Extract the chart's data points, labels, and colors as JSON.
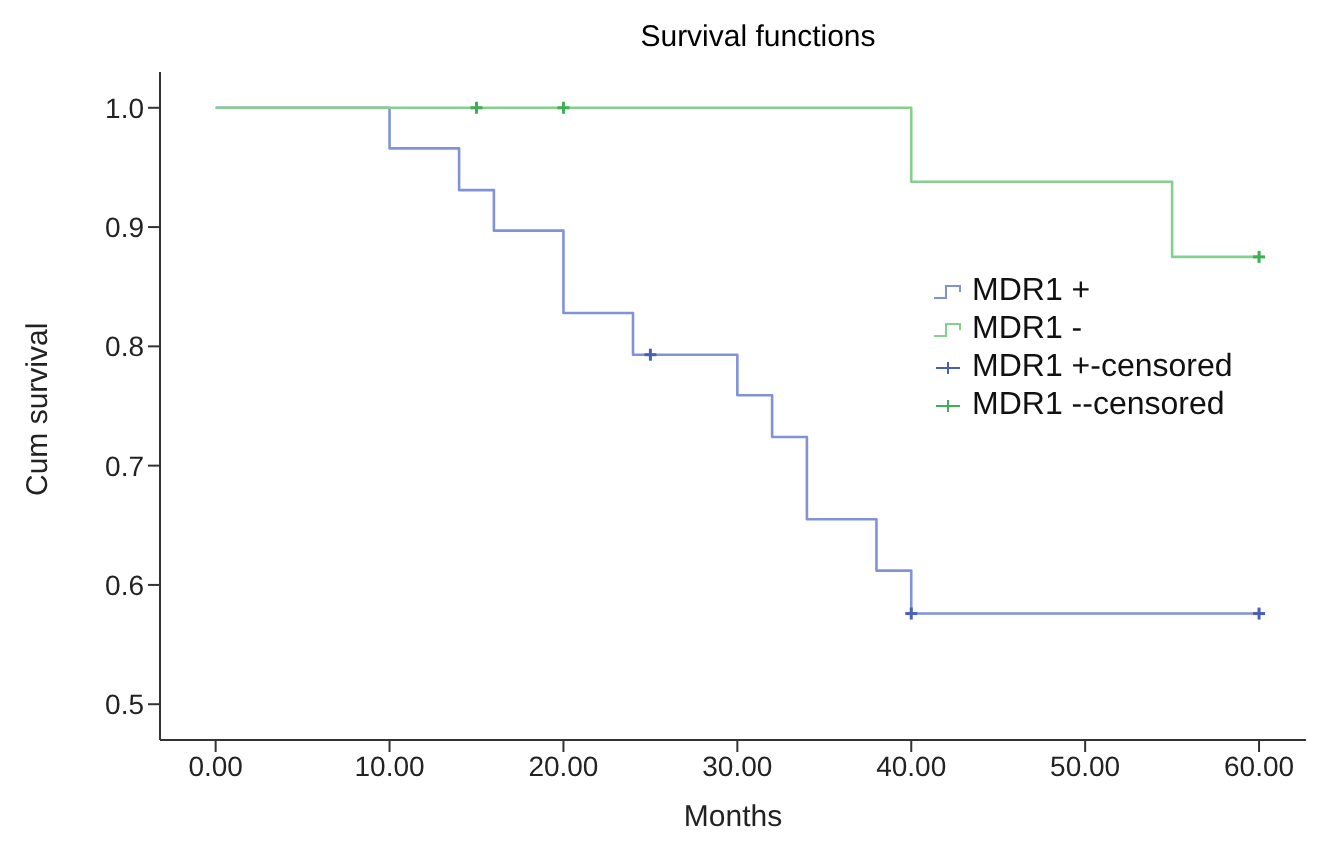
{
  "chart_data": {
    "type": "step",
    "title": "Survival functions",
    "xlabel": "Months",
    "ylabel": "Cum survival",
    "xlim": [
      -3.2,
      62.7
    ],
    "ylim": [
      0.47,
      1.03
    ],
    "xticks": [
      {
        "value": 0,
        "label": "0.00"
      },
      {
        "value": 10,
        "label": "10.00"
      },
      {
        "value": 20,
        "label": "20.00"
      },
      {
        "value": 30,
        "label": "30.00"
      },
      {
        "value": 40,
        "label": "40.00"
      },
      {
        "value": 50,
        "label": "50.00"
      },
      {
        "value": 60,
        "label": "60.00"
      }
    ],
    "yticks": [
      0.5,
      0.6,
      0.7,
      0.8,
      0.9,
      {
        "value": 1.0,
        "label": "1.0"
      }
    ],
    "grid": false,
    "legend": "right",
    "series": [
      {
        "name": "MDR1 +",
        "color": "#8193d6",
        "x": [
          0,
          10,
          14,
          16,
          20,
          24,
          30,
          32,
          34,
          38,
          40,
          60
        ],
        "values": [
          1.0,
          0.966,
          0.931,
          0.897,
          0.828,
          0.793,
          0.759,
          0.724,
          0.655,
          0.612,
          0.576,
          0.576
        ]
      },
      {
        "name": "MDR1 -",
        "color": "#86cf8e",
        "x": [
          0,
          40,
          55,
          60
        ],
        "values": [
          1.0,
          0.938,
          0.875,
          0.875
        ]
      },
      {
        "name": "MDR1 +-censored",
        "type": "scatter",
        "marker": "cross",
        "color": "#4a5fb8",
        "x": [
          25,
          40,
          60
        ],
        "values": [
          0.793,
          0.576,
          0.576
        ]
      },
      {
        "name": "MDR1 --censored",
        "type": "scatter",
        "marker": "cross",
        "color": "#3fae55",
        "x": [
          15,
          20,
          60
        ],
        "values": [
          1.0,
          1.0,
          0.875
        ]
      }
    ]
  }
}
